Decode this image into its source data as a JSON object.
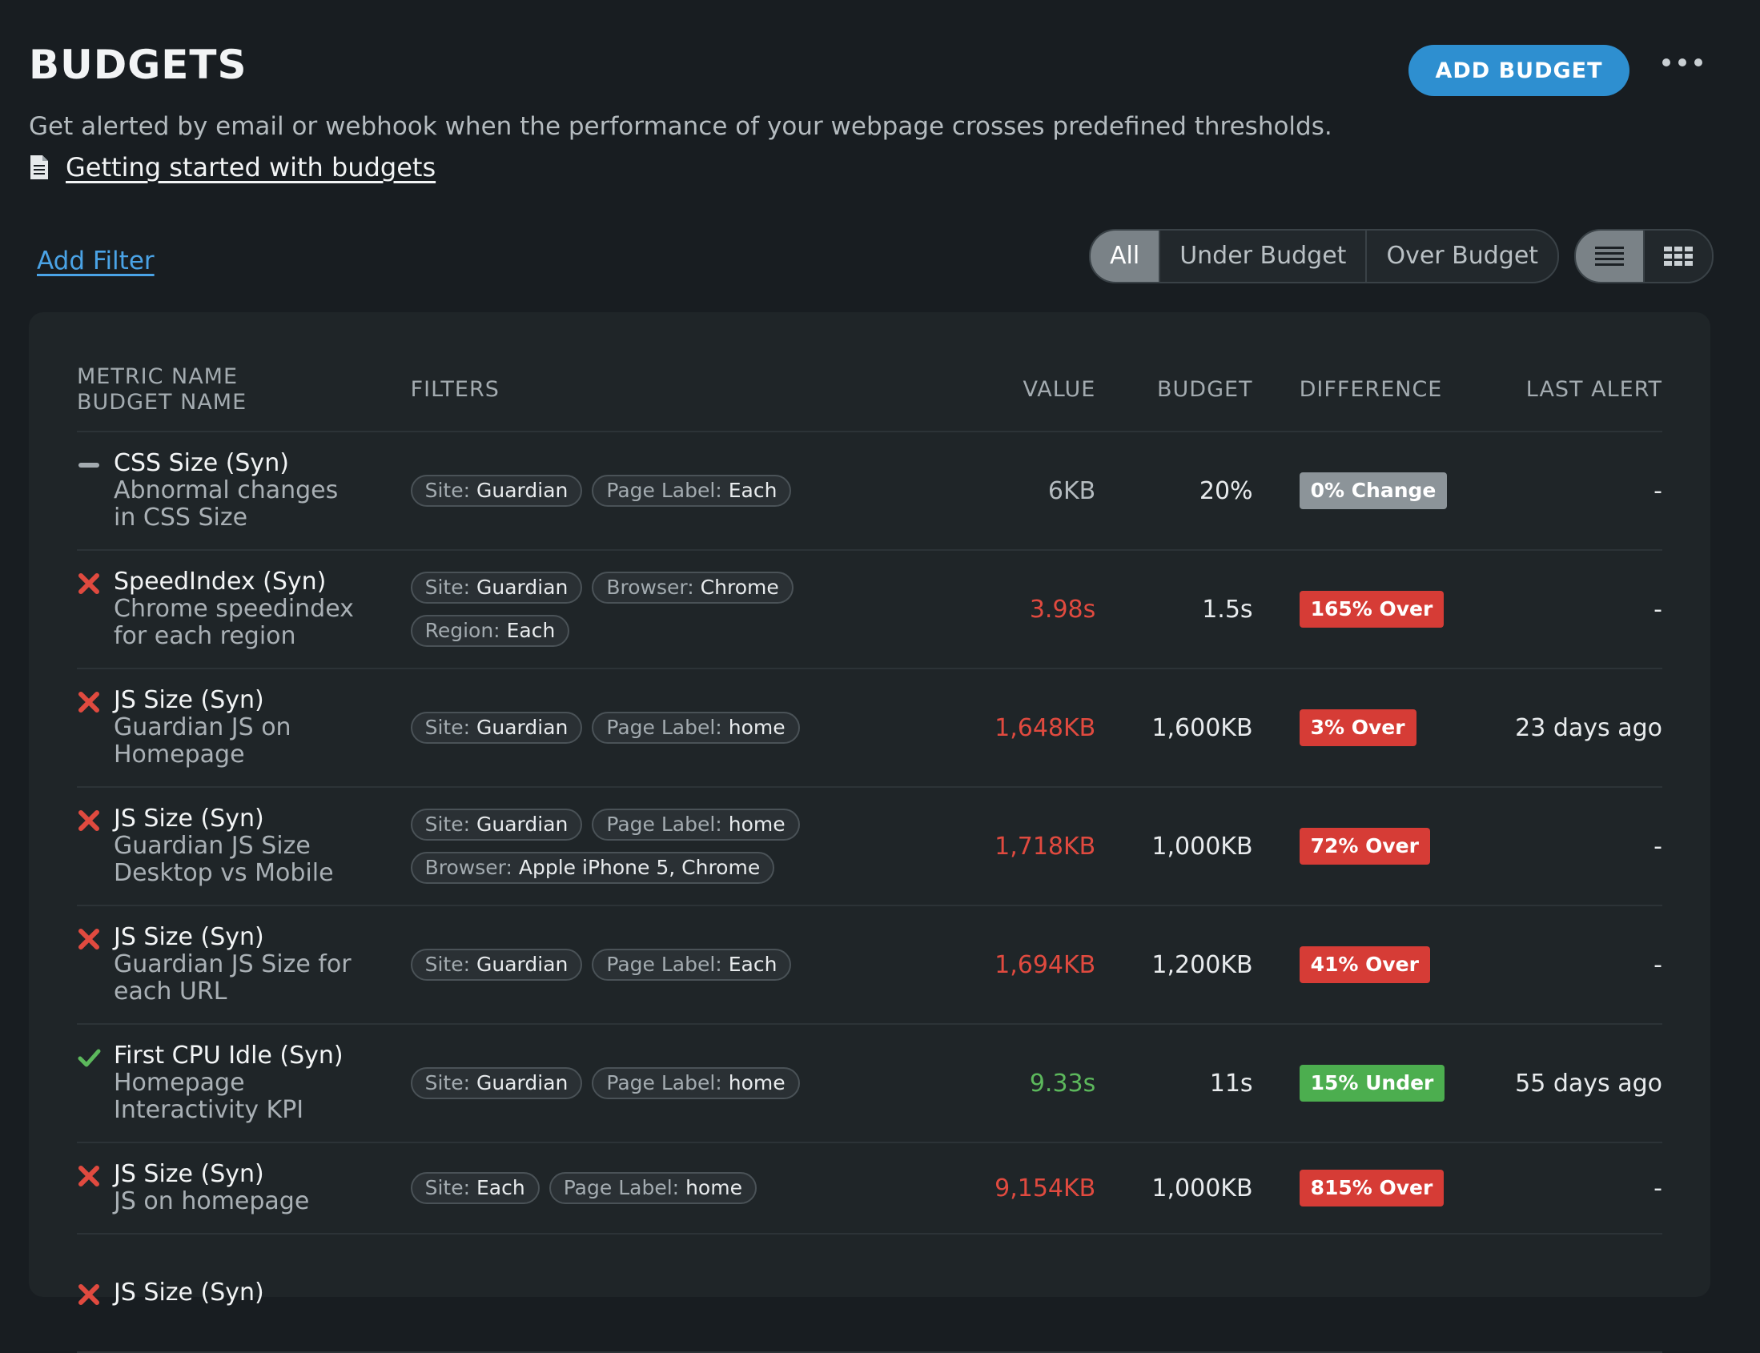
{
  "header": {
    "title": "BUDGETS",
    "subtitle": "Get alerted by email or webhook when the performance of your webpage crosses predefined thresholds.",
    "doc_link": "Getting started with budgets",
    "add_button": "ADD BUDGET"
  },
  "toolbar": {
    "add_filter": "Add Filter",
    "filter_options": [
      "All",
      "Under Budget",
      "Over Budget"
    ],
    "active_filter": "All",
    "view_modes": [
      "list-view-icon",
      "grid-view-icon"
    ]
  },
  "table": {
    "columns": {
      "metric_name": "METRIC NAME",
      "budget_name": "BUDGET NAME",
      "filters": "FILTERS",
      "value": "VALUE",
      "budget": "BUDGET",
      "difference": "DIFFERENCE",
      "last_alert": "LAST ALERT"
    },
    "rows": [
      {
        "status": "neutral",
        "metric": "CSS Size (Syn)",
        "budget_name_l1": "Abnormal changes",
        "budget_name_l2": "in CSS Size",
        "filters": [
          {
            "k": "Site:",
            "v": "Guardian"
          },
          {
            "k": "Page Label:",
            "v": "Each"
          }
        ],
        "value": "6KB",
        "budget": "20%",
        "difference": "0% Change",
        "last_alert": "-"
      },
      {
        "status": "over",
        "metric": "SpeedIndex (Syn)",
        "budget_name_l1": "Chrome speedindex",
        "budget_name_l2": "for each region",
        "filters": [
          {
            "k": "Site:",
            "v": "Guardian"
          },
          {
            "k": "Browser:",
            "v": "Chrome"
          },
          {
            "k": "Region:",
            "v": "Each"
          }
        ],
        "value": "3.98s",
        "budget": "1.5s",
        "difference": "165% Over",
        "last_alert": "-"
      },
      {
        "status": "over",
        "metric": "JS Size (Syn)",
        "budget_name_l1": "Guardian JS on",
        "budget_name_l2": "Homepage",
        "filters": [
          {
            "k": "Site:",
            "v": "Guardian"
          },
          {
            "k": "Page Label:",
            "v": "home"
          }
        ],
        "value": "1,648KB",
        "budget": "1,600KB",
        "difference": "3% Over",
        "last_alert": "23 days ago"
      },
      {
        "status": "over",
        "metric": "JS Size (Syn)",
        "budget_name_l1": "Guardian JS Size",
        "budget_name_l2": "Desktop vs Mobile",
        "filters": [
          {
            "k": "Site:",
            "v": "Guardian"
          },
          {
            "k": "Page Label:",
            "v": "home"
          },
          {
            "k": "Browser:",
            "v": "Apple iPhone 5, Chrome"
          }
        ],
        "value": "1,718KB",
        "budget": "1,000KB",
        "difference": "72% Over",
        "last_alert": "-"
      },
      {
        "status": "over",
        "metric": "JS Size (Syn)",
        "budget_name_l1": "Guardian JS Size for",
        "budget_name_l2": "each URL",
        "filters": [
          {
            "k": "Site:",
            "v": "Guardian"
          },
          {
            "k": "Page Label:",
            "v": "Each"
          }
        ],
        "value": "1,694KB",
        "budget": "1,200KB",
        "difference": "41% Over",
        "last_alert": "-"
      },
      {
        "status": "under",
        "metric": "First CPU Idle (Syn)",
        "budget_name_l1": "Homepage",
        "budget_name_l2": "Interactivity KPI",
        "filters": [
          {
            "k": "Site:",
            "v": "Guardian"
          },
          {
            "k": "Page Label:",
            "v": "home"
          }
        ],
        "value": "9.33s",
        "budget": "11s",
        "difference": "15% Under",
        "last_alert": "55 days ago"
      },
      {
        "status": "over",
        "metric": "JS Size (Syn)",
        "budget_name_l1": "JS on homepage",
        "budget_name_l2": "",
        "filters": [
          {
            "k": "Site:",
            "v": "Each"
          },
          {
            "k": "Page Label:",
            "v": "home"
          }
        ],
        "value": "9,154KB",
        "budget": "1,000KB",
        "difference": "815% Over",
        "last_alert": "-"
      },
      {
        "status": "over",
        "metric": "JS Size (Syn)",
        "budget_name_l1": "",
        "budget_name_l2": "",
        "filters": [],
        "value": "",
        "budget": "",
        "difference": "",
        "last_alert": ""
      }
    ]
  },
  "colors": {
    "over": "#d63c36",
    "under": "#4cae4f",
    "neutral": "#8c9499",
    "accent": "#2e8fd0"
  }
}
